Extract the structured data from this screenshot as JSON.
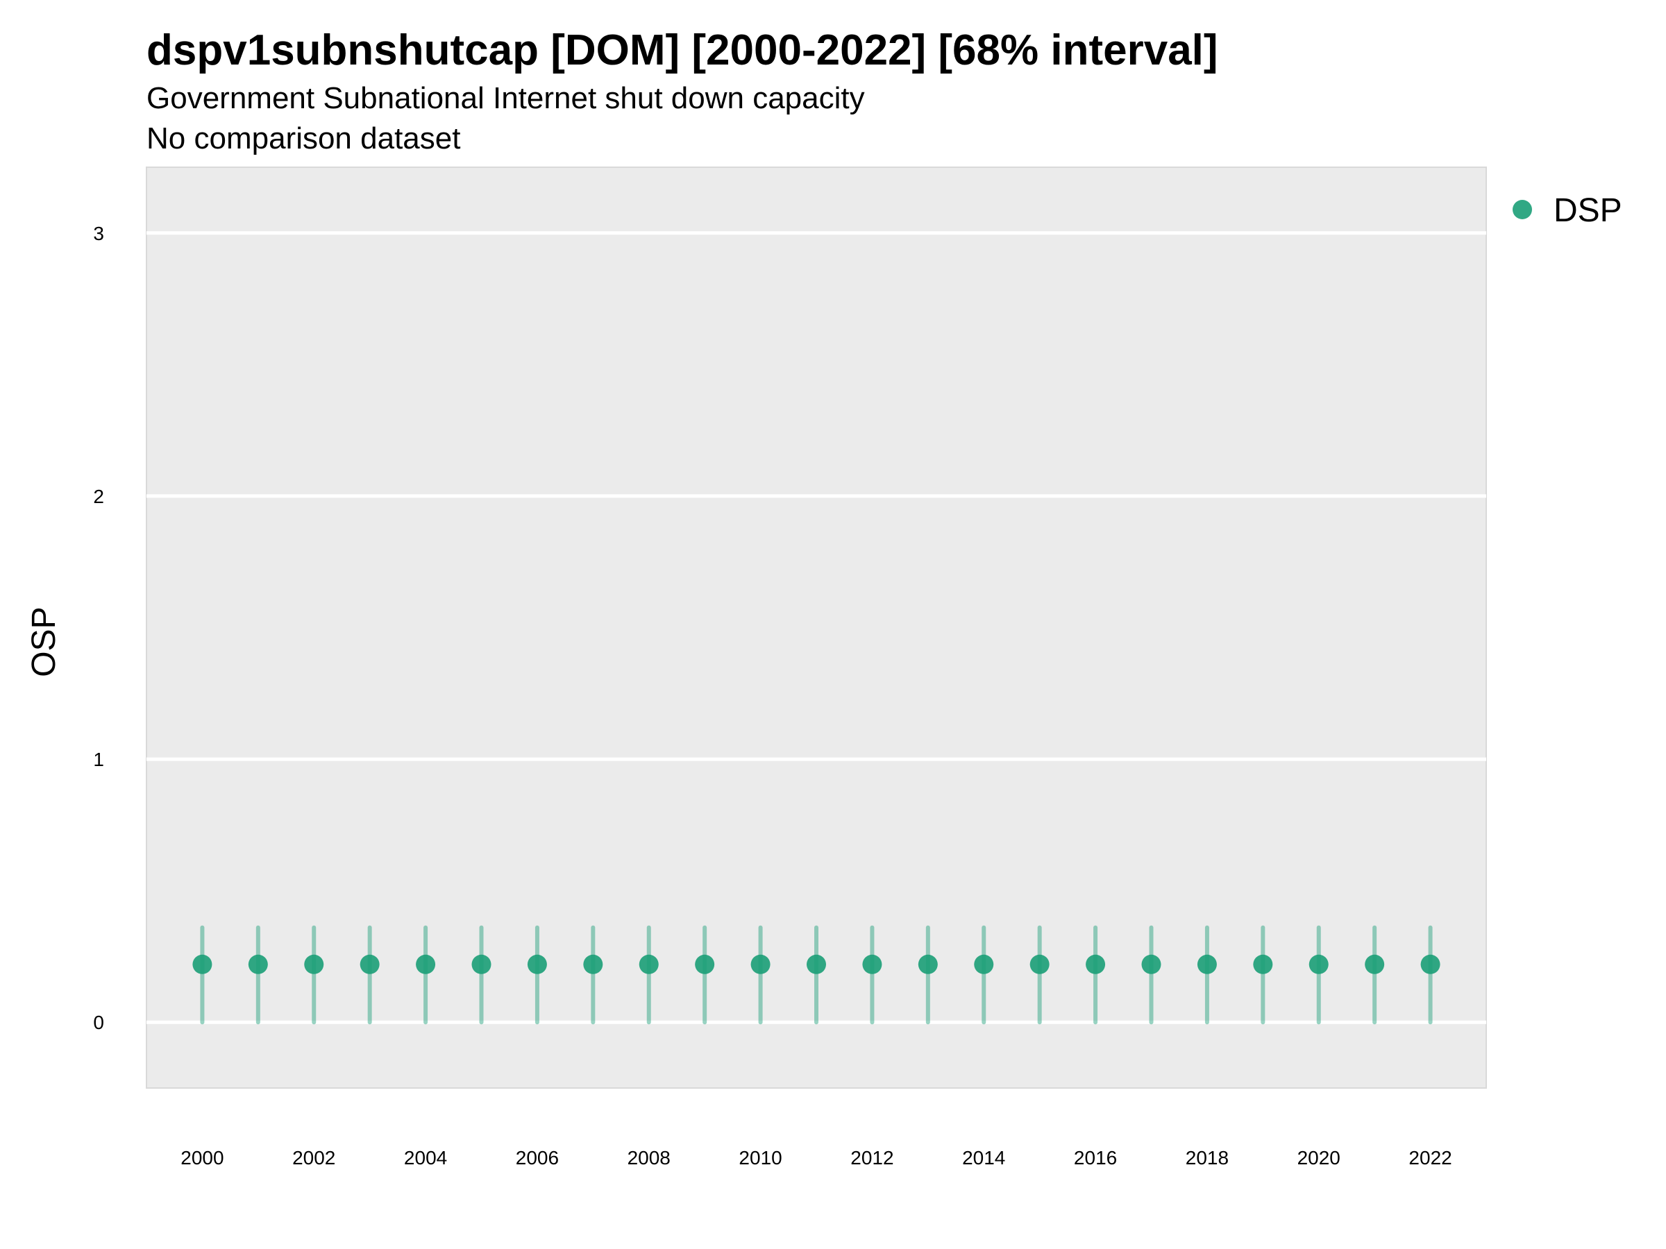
{
  "chart_data": {
    "type": "scatter",
    "title": "dspv1subnshutcap [DOM] [2000-2022] [68% interval]",
    "subtitle": "Government Subnational Internet shut down capacity",
    "caption_line": "No comparison dataset",
    "xlabel": "",
    "ylabel": "OSP",
    "xlim": [
      1999,
      2023
    ],
    "ylim": [
      -0.25,
      3.25
    ],
    "y_ticks": [
      0,
      1,
      2,
      3
    ],
    "x_ticks": [
      2000,
      2002,
      2004,
      2006,
      2008,
      2010,
      2012,
      2014,
      2016,
      2018,
      2020,
      2022
    ],
    "grid": true,
    "legend_position": "top-right",
    "series": [
      {
        "name": "DSP",
        "color": "#1b9e77",
        "x": [
          2000,
          2001,
          2002,
          2003,
          2004,
          2005,
          2006,
          2007,
          2008,
          2009,
          2010,
          2011,
          2012,
          2013,
          2014,
          2015,
          2016,
          2017,
          2018,
          2019,
          2020,
          2021,
          2022
        ],
        "y": [
          0.22,
          0.22,
          0.22,
          0.22,
          0.22,
          0.22,
          0.22,
          0.22,
          0.22,
          0.22,
          0.22,
          0.22,
          0.22,
          0.22,
          0.22,
          0.22,
          0.22,
          0.22,
          0.22,
          0.22,
          0.22,
          0.22,
          0.22
        ],
        "lower": [
          0.0,
          0.0,
          0.0,
          0.0,
          0.0,
          0.0,
          0.0,
          0.0,
          0.0,
          0.0,
          0.0,
          0.0,
          0.0,
          0.0,
          0.0,
          0.0,
          0.0,
          0.0,
          0.0,
          0.0,
          0.0,
          0.0,
          0.0
        ],
        "upper": [
          0.36,
          0.36,
          0.36,
          0.36,
          0.36,
          0.36,
          0.36,
          0.36,
          0.36,
          0.36,
          0.36,
          0.36,
          0.36,
          0.36,
          0.36,
          0.36,
          0.36,
          0.36,
          0.36,
          0.36,
          0.36,
          0.36,
          0.36
        ]
      }
    ]
  }
}
